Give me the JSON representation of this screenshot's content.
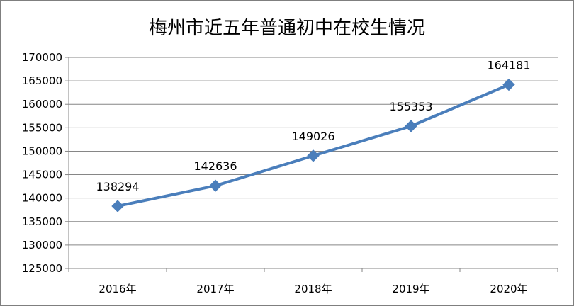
{
  "chart_data": {
    "type": "line",
    "title": "梅州市近五年普通初中在校生情况",
    "categories": [
      "2016年",
      "2017年",
      "2018年",
      "2019年",
      "2020年"
    ],
    "series": [
      {
        "values": [
          138294,
          142636,
          149026,
          155353,
          164181
        ],
        "color": "#4a7ebb"
      }
    ],
    "data_labels": [
      "138294",
      "142636",
      "149026",
      "155353",
      "164181"
    ],
    "ylim": [
      125000,
      170000
    ],
    "yticks": [
      125000,
      130000,
      135000,
      140000,
      145000,
      150000,
      155000,
      160000,
      165000,
      170000
    ],
    "ytick_labels": [
      "125000",
      "130000",
      "135000",
      "140000",
      "145000",
      "150000",
      "155000",
      "160000",
      "165000",
      "170000"
    ],
    "grid": true,
    "grid_color": "#868686",
    "marker": "diamond",
    "legend": "none"
  }
}
